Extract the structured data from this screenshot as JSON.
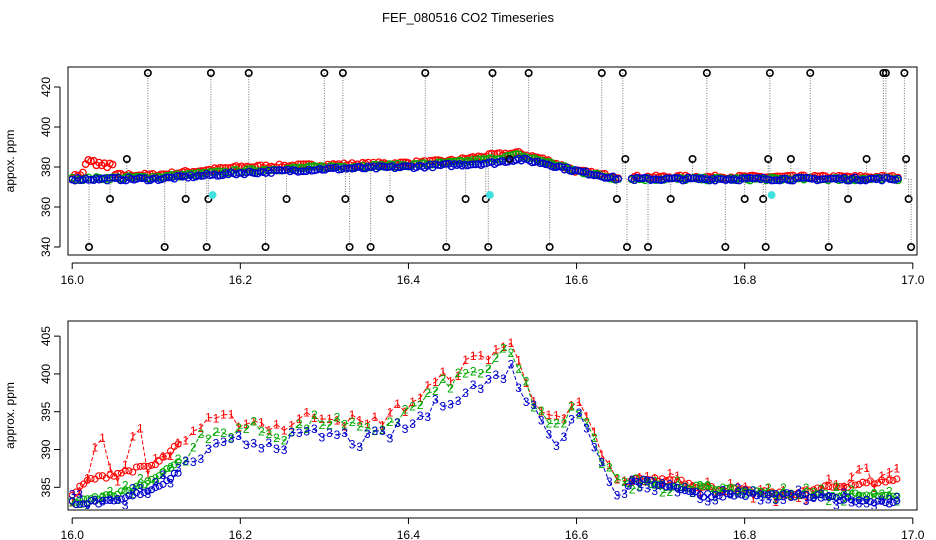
{
  "figure_title": "FEF_080516  CO2 Timeseries",
  "chart_data": [
    {
      "type": "scatter",
      "ylabel": "appox. ppm",
      "xlim": [
        15.995,
        17.005
      ],
      "ylim": [
        336,
        430
      ],
      "xticks": [
        "16.0",
        "16.2",
        "16.4",
        "16.6",
        "16.8",
        "17.0"
      ],
      "yticks": [
        "340",
        "360",
        "380",
        "400",
        "420"
      ],
      "series": [
        {
          "color": "#ff0000",
          "baseline": [
            [
              16.0,
              375
            ],
            [
              16.02,
              378
            ],
            [
              16.04,
              376
            ],
            [
              16.1,
              376
            ],
            [
              16.2,
              380
            ],
            [
              16.3,
              381
            ],
            [
              16.4,
              382
            ],
            [
              16.45,
              383
            ],
            [
              16.5,
              386
            ],
            [
              16.53,
              387
            ],
            [
              16.56,
              384
            ],
            [
              16.6,
              378
            ],
            [
              16.65,
              375
            ],
            [
              16.66,
              375
            ],
            [
              16.98,
              375
            ]
          ]
        },
        {
          "color": "#00aa00",
          "baseline": [
            [
              16.0,
              374
            ],
            [
              16.1,
              375
            ],
            [
              16.2,
              378
            ],
            [
              16.3,
              380
            ],
            [
              16.4,
              381
            ],
            [
              16.45,
              382
            ],
            [
              16.5,
              384
            ],
            [
              16.53,
              386
            ],
            [
              16.56,
              383
            ],
            [
              16.6,
              378
            ],
            [
              16.65,
              374
            ],
            [
              16.66,
              374
            ],
            [
              16.98,
              374
            ]
          ]
        },
        {
          "color": "#0000cc",
          "baseline": [
            [
              16.0,
              374
            ],
            [
              16.1,
              374
            ],
            [
              16.2,
              377
            ],
            [
              16.3,
              379
            ],
            [
              16.4,
              380
            ],
            [
              16.45,
              381
            ],
            [
              16.5,
              382
            ],
            [
              16.53,
              384
            ],
            [
              16.56,
              382
            ],
            [
              16.6,
              378
            ],
            [
              16.65,
              374
            ],
            [
              16.66,
              374
            ],
            [
              16.98,
              374
            ]
          ]
        }
      ],
      "outliers_black": [
        [
          16.065,
          384
        ],
        [
          16.09,
          427
        ],
        [
          16.11,
          340
        ],
        [
          16.135,
          364
        ],
        [
          16.045,
          364
        ],
        [
          16.02,
          340
        ],
        [
          16.16,
          340
        ],
        [
          16.162,
          364
        ],
        [
          16.165,
          427
        ],
        [
          16.21,
          427
        ],
        [
          16.23,
          340
        ],
        [
          16.255,
          364
        ],
        [
          16.3,
          427
        ],
        [
          16.322,
          427
        ],
        [
          16.325,
          364
        ],
        [
          16.33,
          340
        ],
        [
          16.355,
          340
        ],
        [
          16.378,
          364
        ],
        [
          16.42,
          427
        ],
        [
          16.445,
          340
        ],
        [
          16.468,
          364
        ],
        [
          16.492,
          364
        ],
        [
          16.495,
          340
        ],
        [
          16.5,
          427
        ],
        [
          16.52,
          384
        ],
        [
          16.543,
          427
        ],
        [
          16.568,
          340
        ],
        [
          16.63,
          427
        ],
        [
          16.648,
          364
        ],
        [
          16.655,
          427
        ],
        [
          16.658,
          384
        ],
        [
          16.66,
          340
        ],
        [
          16.685,
          340
        ],
        [
          16.712,
          364
        ],
        [
          16.738,
          384
        ],
        [
          16.755,
          427
        ],
        [
          16.777,
          340
        ],
        [
          16.8,
          364
        ],
        [
          16.822,
          364
        ],
        [
          16.825,
          340
        ],
        [
          16.828,
          384
        ],
        [
          16.83,
          427
        ],
        [
          16.855,
          384
        ],
        [
          16.878,
          427
        ],
        [
          16.9,
          340
        ],
        [
          16.923,
          364
        ],
        [
          16.945,
          384
        ],
        [
          16.965,
          427
        ],
        [
          16.968,
          427
        ],
        [
          16.99,
          427
        ],
        [
          16.992,
          384
        ],
        [
          16.995,
          364
        ],
        [
          16.998,
          340
        ]
      ],
      "outliers_cyan": [
        [
          16.167,
          366
        ],
        [
          16.497,
          366
        ],
        [
          16.832,
          366
        ]
      ]
    },
    {
      "type": "line",
      "ylabel": "approx. ppm",
      "xlim": [
        15.995,
        17.005
      ],
      "ylim": [
        382,
        407
      ],
      "xticks": [
        "16.0",
        "16.2",
        "16.4",
        "16.6",
        "16.8",
        "17.0"
      ],
      "yticks": [
        "385",
        "390",
        "395",
        "400",
        "405"
      ],
      "series": [
        {
          "marker": "1",
          "color": "#ff0000",
          "baseline": [
            [
              16.0,
              384
            ],
            [
              16.02,
              386
            ],
            [
              16.1,
              388
            ],
            [
              16.15,
              393
            ],
            [
              16.2,
              394
            ],
            [
              16.25,
              393
            ],
            [
              16.3,
              395
            ],
            [
              16.35,
              393
            ],
            [
              16.4,
              396
            ],
            [
              16.45,
              400
            ],
            [
              16.5,
              403
            ],
            [
              16.52,
              404
            ],
            [
              16.55,
              397
            ],
            [
              16.58,
              393
            ],
            [
              16.6,
              396
            ],
            [
              16.62,
              392
            ],
            [
              16.65,
              385
            ],
            [
              16.67,
              386
            ],
            [
              16.72,
              386
            ],
            [
              16.75,
              385
            ],
            [
              16.85,
              384
            ],
            [
              16.9,
              385
            ],
            [
              16.98,
              386
            ]
          ]
        },
        {
          "marker": "2",
          "color": "#00aa00",
          "baseline": [
            [
              16.0,
              383
            ],
            [
              16.05,
              384
            ],
            [
              16.1,
              386
            ],
            [
              16.15,
              391
            ],
            [
              16.2,
              393
            ],
            [
              16.25,
              392
            ],
            [
              16.3,
              394
            ],
            [
              16.35,
              392
            ],
            [
              16.4,
              395
            ],
            [
              16.45,
              399
            ],
            [
              16.5,
              401
            ],
            [
              16.52,
              403
            ],
            [
              16.55,
              396
            ],
            [
              16.58,
              392
            ],
            [
              16.6,
              396
            ],
            [
              16.62,
              391
            ],
            [
              16.65,
              385
            ],
            [
              16.67,
              386
            ],
            [
              16.72,
              385
            ],
            [
              16.75,
              385
            ],
            [
              16.85,
              384
            ],
            [
              16.98,
              384
            ]
          ]
        },
        {
          "marker": "3",
          "color": "#0000cc",
          "baseline": [
            [
              16.0,
              383
            ],
            [
              16.05,
              383
            ],
            [
              16.1,
              385
            ],
            [
              16.15,
              389
            ],
            [
              16.2,
              391
            ],
            [
              16.25,
              391
            ],
            [
              16.3,
              392
            ],
            [
              16.35,
              391
            ],
            [
              16.4,
              393
            ],
            [
              16.45,
              397
            ],
            [
              16.5,
              399
            ],
            [
              16.52,
              401
            ],
            [
              16.55,
              395
            ],
            [
              16.58,
              391
            ],
            [
              16.6,
              396
            ],
            [
              16.62,
              390
            ],
            [
              16.65,
              384
            ],
            [
              16.67,
              386
            ],
            [
              16.72,
              385
            ],
            [
              16.75,
              384
            ],
            [
              16.85,
              384
            ],
            [
              16.98,
              383
            ]
          ]
        }
      ]
    }
  ]
}
